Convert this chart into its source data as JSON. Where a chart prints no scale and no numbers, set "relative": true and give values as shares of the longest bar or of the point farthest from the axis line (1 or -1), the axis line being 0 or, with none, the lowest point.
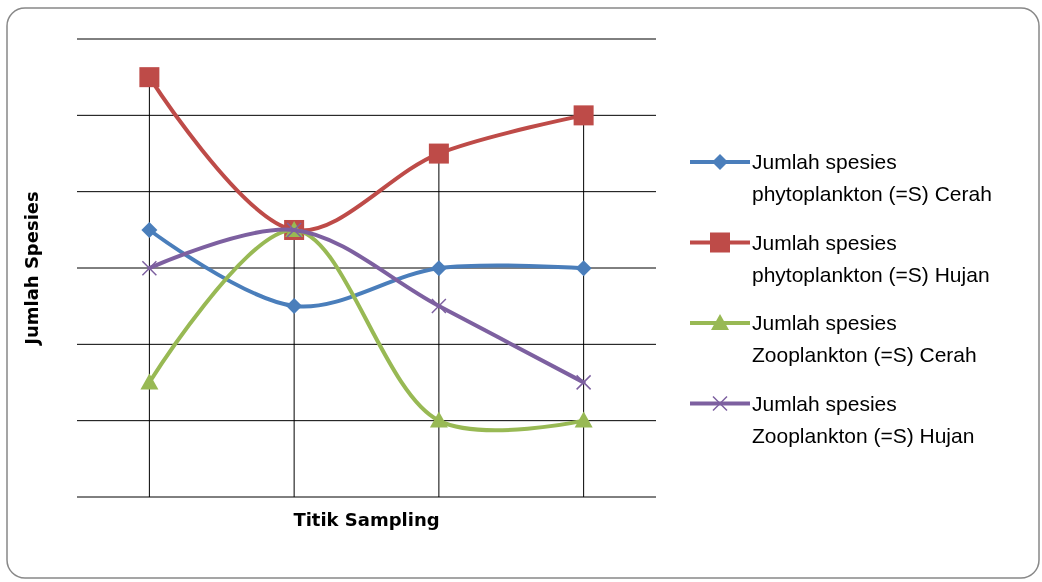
{
  "chart_data": {
    "type": "line",
    "xlabel": "Titik Sampling",
    "ylabel": "Jumlah Spesies",
    "relative": true,
    "grid": true,
    "legend": "right",
    "categories": [
      null,
      null,
      null,
      null
    ],
    "series": [
      {
        "name": "Jumlah spesies phytoplankton (=S) Cerah",
        "color": "#4a7ebb",
        "marker": "diamond",
        "values": [
          0.636,
          0.455,
          0.545,
          0.545
        ]
      },
      {
        "name": "Jumlah spesies phytoplankton (=S) Hujan",
        "color": "#be4b48",
        "marker": "square",
        "values": [
          1,
          0.636,
          0.818,
          0.909
        ]
      },
      {
        "name": "Jumlah spesies Zooplankton (=S) Cerah",
        "color": "#98b954",
        "marker": "triangle",
        "values": [
          0.273,
          0.636,
          0.182,
          0.182
        ]
      },
      {
        "name": "Jumlah spesies Zooplankton (=S) Hujan",
        "color": "#7d60a0",
        "marker": "cross",
        "values": [
          0.545,
          0.636,
          0.455,
          0.273
        ]
      }
    ]
  }
}
